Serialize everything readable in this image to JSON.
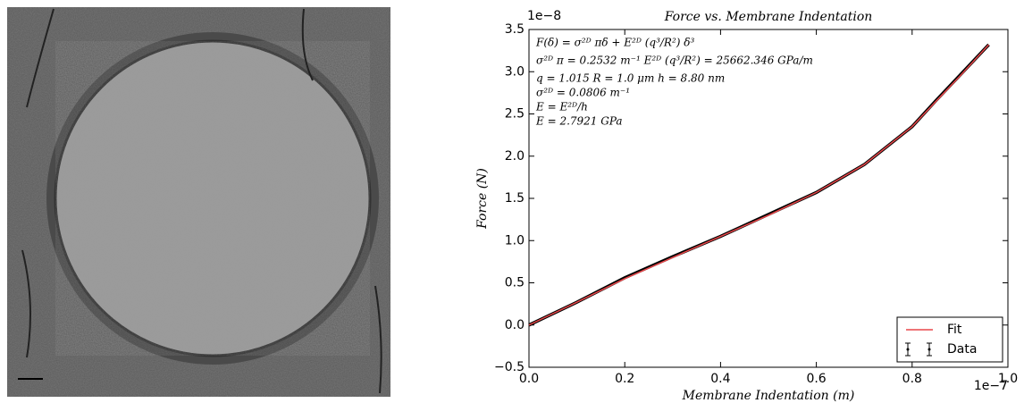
{
  "chart_data": {
    "type": "line",
    "title": "Force vs. Membrane Indentation",
    "x_label": "Membrane Indentation (m)",
    "y_label": "Force (N)",
    "x_offset": "1e−7",
    "y_offset": "1e−8",
    "annotations": [
      "F(δ) = σ²ᴰ πδ + E²ᴰ (q³/R²) δ³",
      "σ²ᴰ π = 0.2532 m⁻¹   E²ᴰ (q³/R²) = 25662.346 GPa/m",
      "q = 1.015   R = 1.0 μm   h = 8.80 nm",
      "σ²ᴰ = 0.0806 m⁻¹",
      "E = E²ᴰ/h",
      "E = 2.7921 GPa"
    ],
    "x": [
      0.0,
      0.1,
      0.2,
      0.3,
      0.4,
      0.5,
      0.6,
      0.7,
      0.8,
      0.85,
      0.9,
      0.96
    ],
    "series": [
      {
        "name": "Fit",
        "color": "#e8474a",
        "values": [
          0.0,
          0.27,
          0.55,
          0.8,
          1.05,
          1.3,
          1.57,
          1.9,
          2.35,
          2.65,
          2.95,
          3.32
        ]
      },
      {
        "name": "Data",
        "color": "#000000",
        "values": [
          0.0,
          0.27,
          0.56,
          0.81,
          1.05,
          1.31,
          1.57,
          1.9,
          2.35,
          2.66,
          2.96,
          3.32
        ]
      }
    ],
    "xlim": [
      0,
      1.0
    ],
    "ylim": [
      -0.5,
      3.5
    ],
    "xticks": [
      {
        "value": 0,
        "label": "0.0"
      },
      0.2,
      0.4,
      0.6,
      0.8,
      {
        "value": 1.0,
        "label": "1.0"
      }
    ],
    "yticks": [
      {
        "value": -0.5,
        "label": "−0.5"
      },
      {
        "value": 0,
        "label": "0.0"
      },
      0.5,
      {
        "value": 1.0,
        "label": "1.0"
      },
      1.5,
      {
        "value": 2.0,
        "label": "2.0"
      },
      2.5,
      {
        "value": 3.0,
        "label": "3.0"
      },
      3.5
    ],
    "legend": "lower right"
  }
}
